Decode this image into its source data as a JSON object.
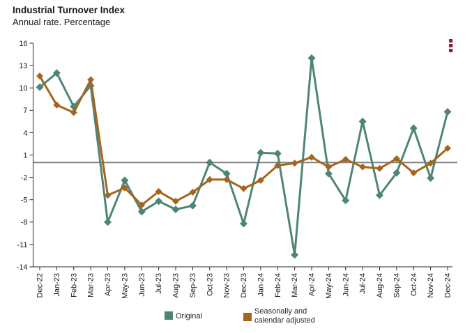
{
  "header": {
    "title": "Industrial Turnover Index",
    "subtitle": "Annual rate. Percentage"
  },
  "menu": {
    "icon": "kebab-vertical-menu",
    "color": "#9E1B32"
  },
  "chart_data": {
    "type": "line",
    "title": "Industrial Turnover Index",
    "subtitle": "Annual rate. Percentage",
    "categories": [
      "Dec-22",
      "Jan-23",
      "Feb-23",
      "Mar-23",
      "Apr-23",
      "May-23",
      "Jun-23",
      "Jul-23",
      "Aug-23",
      "Sep-23",
      "Oct-23",
      "Nov-23",
      "Dec-23",
      "Jan-24",
      "Feb-24",
      "Mar-24",
      "Apr-24",
      "May-24",
      "Jun-24",
      "Jul-24",
      "Aug-24",
      "Sep-24",
      "Oct-24",
      "Nov-24",
      "Dec-24"
    ],
    "series": [
      {
        "name": "Original",
        "color": "#4E8579",
        "marker": "diamond",
        "values": [
          10.1,
          12.0,
          7.5,
          10.3,
          -8.0,
          -2.4,
          -6.6,
          -5.2,
          -6.3,
          -5.8,
          0.0,
          -1.5,
          -8.2,
          1.3,
          1.2,
          -12.4,
          14.0,
          -1.5,
          -5.1,
          5.5,
          -4.4,
          -1.4,
          4.6,
          -2.1,
          6.8
        ]
      },
      {
        "name": "Seasonally and calendar adjusted",
        "color": "#A4651E",
        "marker": "diamond",
        "values": [
          11.6,
          7.7,
          6.7,
          11.1,
          -4.4,
          -3.4,
          -5.7,
          -3.9,
          -5.2,
          -4.0,
          -2.3,
          -2.3,
          -3.5,
          -2.4,
          -0.4,
          -0.1,
          0.7,
          -0.6,
          0.4,
          -0.6,
          -0.8,
          0.5,
          -1.4,
          -0.1,
          1.9
        ]
      }
    ],
    "ylim": [
      -14,
      16
    ],
    "yticks": [
      16,
      13,
      10,
      7,
      4,
      1,
      -2,
      -5,
      -8,
      -11,
      -14
    ],
    "zero_line": true,
    "zero_line_color": "#808080",
    "axis_color": "#262626",
    "tick_label_color": "#1a1a1a",
    "grid": false,
    "legend_position": "bottom"
  },
  "legend": {
    "items": [
      {
        "label": "Original",
        "color": "#4E8579"
      },
      {
        "label": "Seasonally and calendar adjusted",
        "color": "#A4651E"
      }
    ]
  }
}
